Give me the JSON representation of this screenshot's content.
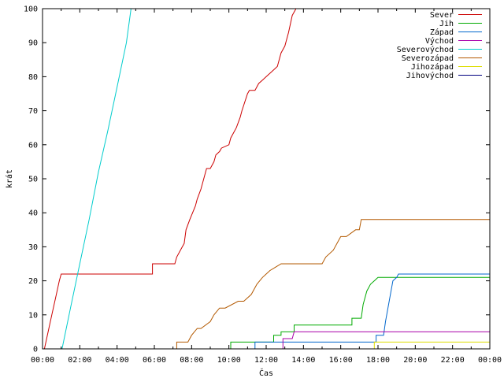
{
  "chart_data": {
    "type": "line",
    "xlabel": "Čas",
    "ylabel": "krát",
    "xlim": [
      0,
      24
    ],
    "ylim": [
      0,
      100
    ],
    "x_tick_labels": [
      "00:00",
      "02:00",
      "04:00",
      "06:00",
      "08:00",
      "10:00",
      "12:00",
      "14:00",
      "16:00",
      "18:00",
      "20:00",
      "22:00",
      "00:00"
    ],
    "y_tick_labels": [
      "0",
      "10",
      "20",
      "30",
      "40",
      "50",
      "60",
      "70",
      "80",
      "90",
      "100"
    ],
    "legend_position": "top-right",
    "grid": false,
    "series": [
      {
        "name": "Sever",
        "color": "#cc0000",
        "x": [
          0,
          0.1,
          0.3,
          0.5,
          0.7,
          0.9,
          1.0,
          5.9,
          5.9,
          7.1,
          7.2,
          7.5,
          7.6,
          7.7,
          7.9,
          8.2,
          8.3,
          8.5,
          8.7,
          8.8,
          9.0,
          9.2,
          9.3,
          9.5,
          9.6,
          10.0,
          10.1,
          10.4,
          10.6,
          10.7,
          11.0,
          11.1,
          11.4,
          11.6,
          11.8,
          12.0,
          12.2,
          12.4,
          12.6,
          12.8,
          13.0,
          13.2,
          13.4,
          13.6,
          14.0
        ],
        "y": [
          0,
          0,
          5,
          10,
          15,
          20,
          22,
          22,
          25,
          25,
          27,
          30,
          31,
          35,
          38,
          42,
          44,
          47,
          51,
          53,
          53,
          55,
          57,
          58,
          59,
          60,
          62,
          65,
          68,
          70,
          75,
          76,
          76,
          78,
          79,
          80,
          81,
          82,
          83,
          87,
          89,
          93,
          98,
          100,
          100
        ]
      },
      {
        "name": "Jih",
        "color": "#00aa00",
        "x": [
          0,
          10.1,
          10.1,
          12.4,
          12.4,
          12.8,
          12.8,
          13.5,
          13.5,
          16.6,
          16.6,
          17.1,
          17.2,
          17.4,
          17.6,
          17.8,
          18.0,
          24
        ],
        "y": [
          0,
          0,
          2,
          2,
          4,
          4,
          5,
          5,
          7,
          7,
          9,
          9,
          13,
          17,
          19,
          20,
          21,
          21
        ]
      },
      {
        "name": "Západ",
        "color": "#0066cc",
        "x": [
          0,
          11.4,
          11.4,
          17.9,
          17.9,
          18.3,
          18.4,
          18.6,
          18.8,
          19.0,
          19.1,
          24
        ],
        "y": [
          0,
          0,
          2,
          2,
          4,
          4,
          8,
          14,
          20,
          21,
          22,
          22
        ]
      },
      {
        "name": "Východ",
        "color": "#aa00aa",
        "x": [
          0,
          12.9,
          12.9,
          13.4,
          13.5,
          24
        ],
        "y": [
          0,
          0,
          3,
          3,
          5,
          5
        ]
      },
      {
        "name": "Severovýchod",
        "color": "#00cccc",
        "x": [
          1.05,
          1.5,
          2.0,
          2.5,
          3.0,
          3.5,
          4.0,
          4.5,
          4.75
        ],
        "y": [
          0,
          12,
          25,
          38,
          52,
          64,
          77,
          90,
          100
        ]
      },
      {
        "name": "Severozápad",
        "color": "#b35900",
        "x": [
          0,
          7.2,
          7.2,
          7.8,
          8.0,
          8.3,
          8.5,
          9.0,
          9.2,
          9.5,
          9.8,
          10.5,
          10.8,
          11.2,
          11.5,
          11.8,
          12.0,
          12.2,
          12.5,
          12.8,
          13.0,
          13.3,
          13.6,
          15.0,
          15.2,
          15.6,
          16.0,
          16.3,
          16.8,
          17.0,
          17.1,
          24
        ],
        "y": [
          0,
          0,
          2,
          2,
          4,
          6,
          6,
          8,
          10,
          12,
          12,
          14,
          14,
          16,
          19,
          21,
          22,
          23,
          24,
          25,
          25,
          25,
          25,
          25,
          27,
          29,
          33,
          33,
          35,
          35,
          38,
          38
        ]
      },
      {
        "name": "Jihozápad",
        "color": "#dddd00",
        "x": [
          0,
          17.8,
          17.8,
          24
        ],
        "y": [
          0,
          0,
          2,
          2
        ]
      },
      {
        "name": "Jihovýchod",
        "color": "#000080",
        "x": [],
        "y": []
      }
    ]
  }
}
